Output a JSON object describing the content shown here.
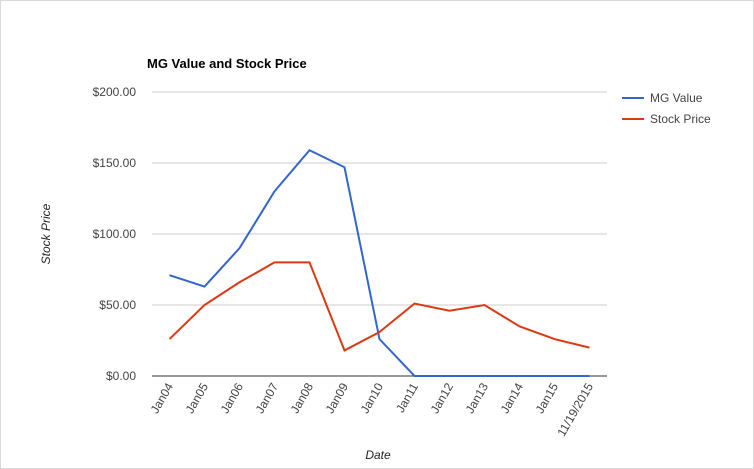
{
  "chart_data": {
    "type": "line",
    "title": "MG Value and Stock Price",
    "x_label": "Date",
    "y_label": "Stock Price",
    "categories": [
      "Jan04",
      "Jan05",
      "Jan06",
      "Jan07",
      "Jan08",
      "Jan09",
      "Jan10",
      "Jan11",
      "Jan12",
      "Jan13",
      "Jan14",
      "Jan15",
      "11/19/2015"
    ],
    "series": [
      {
        "name": "MG Value",
        "color": "#3366cc",
        "values": [
          71,
          63,
          90,
          130,
          159,
          147,
          26,
          0,
          0,
          0,
          0,
          0,
          0
        ]
      },
      {
        "name": "Stock Price",
        "color": "#dc3912",
        "values": [
          26,
          50,
          66,
          80,
          80,
          18,
          31,
          51,
          46,
          50,
          35,
          26,
          20
        ]
      }
    ],
    "ylim": [
      0,
      200
    ],
    "yticks": [
      {
        "value": 0,
        "label": "$0.00"
      },
      {
        "value": 50,
        "label": "$50.00"
      },
      {
        "value": 100,
        "label": "$100.00"
      },
      {
        "value": 150,
        "label": "$150.00"
      },
      {
        "value": 200,
        "label": "$200.00"
      }
    ],
    "grid": true,
    "legend": "right"
  }
}
